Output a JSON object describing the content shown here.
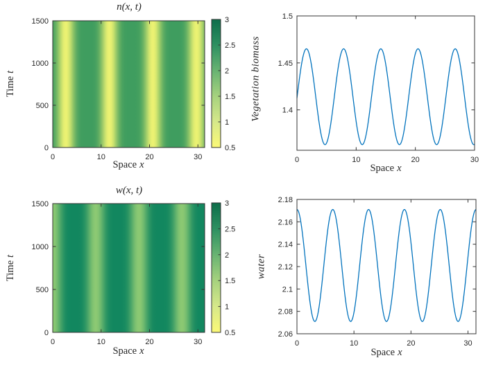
{
  "figure": {
    "background": "#ffffff"
  },
  "style": {
    "line_color": "#0072BD",
    "axis_color": "#333333",
    "text_color": "#262626",
    "colormap_stops_bottom_to_top": [
      "#fbf977",
      "#d6e88a",
      "#a6d27e",
      "#68b372",
      "#2d9061",
      "#0d6e4a"
    ]
  },
  "chart_data": [
    {
      "id": "heatmap-n",
      "type": "heatmap",
      "title": "n(x, t)",
      "xlabel": {
        "text": "Space",
        "var": "x"
      },
      "ylabel": {
        "text": "Time",
        "var": "t"
      },
      "xlim": [
        0,
        31.4
      ],
      "ylim": [
        0,
        1500
      ],
      "xtick_values": [
        0,
        10,
        20,
        30
      ],
      "xtick_labels": [
        "0",
        "10",
        "20",
        "30"
      ],
      "ytick_values": [
        0,
        500,
        1000,
        1500
      ],
      "ytick_labels": [
        "0",
        "500",
        "1000",
        "1500"
      ],
      "colorbar": {
        "min": 0.5,
        "max": 3,
        "tick_values": [
          0.5,
          1,
          1.5,
          2,
          2.5,
          3
        ],
        "tick_labels": [
          "0.5",
          "1",
          "1.5",
          "2",
          "2.5",
          "3"
        ]
      },
      "stripes": {
        "orientation": "vertical-constant-in-time",
        "period_x": 9.0,
        "low_band_centers_x": [
          2.7,
          11.7,
          20.7,
          29.7
        ],
        "low_color": "#ecf272",
        "high_color": "#3f9d5f",
        "low_value_approx": 0.7,
        "high_value_approx": 2.1,
        "band_sharpness": 2.5
      }
    },
    {
      "id": "vegetation-line",
      "type": "line",
      "xlabel": {
        "text": "Space",
        "var": "x"
      },
      "ylabel_math": "Vegetation biomass",
      "xlim": [
        0,
        30
      ],
      "ylim": [
        1.357,
        1.5
      ],
      "xtick_values": [
        0,
        10,
        20,
        30
      ],
      "xtick_labels": [
        "0",
        "10",
        "20",
        "30"
      ],
      "ytick_values": [
        1.4,
        1.45,
        1.5
      ],
      "ytick_labels": [
        "1.4",
        "1.45",
        "1.5"
      ],
      "series": [
        {
          "name": "vegetation biomass profile",
          "model": "y = mean + amplitude*cos(2*pi*(x - first_peak_x)/period)",
          "mean": 1.414,
          "amplitude": 0.051,
          "period": 6.2832,
          "first_peak_x": 1.6,
          "x_start": 0,
          "x_step": 1,
          "y_at_integer_x": [
            1.4125,
            1.4561,
            1.461,
            1.4227,
            1.3764,
            1.3647,
            1.3983,
            1.4464,
            1.4647,
            1.4364,
            1.3875,
            1.363,
            1.3856,
            1.4341,
            1.4643,
            1.4481,
            1.4006,
            1.3654,
            1.375,
            1.4202,
            1.4597,
            1.4581,
            1.4174,
            1.3729,
            1.3662,
            1.4041,
            1.451,
            1.4638,
            1.4324,
            1.384,
            1.3632
          ]
        }
      ]
    },
    {
      "id": "heatmap-w",
      "type": "heatmap",
      "title": "w(x, t)",
      "xlabel": {
        "text": "Space",
        "var": "x"
      },
      "ylabel": {
        "text": "Time",
        "var": "t"
      },
      "xlim": [
        0,
        31.4
      ],
      "ylim": [
        0,
        1500
      ],
      "xtick_values": [
        0,
        10,
        20,
        30
      ],
      "xtick_labels": [
        "0",
        "10",
        "20",
        "30"
      ],
      "ytick_values": [
        0,
        500,
        1000,
        1500
      ],
      "ytick_labels": [
        "0",
        "500",
        "1000",
        "1500"
      ],
      "colorbar": {
        "min": 0.5,
        "max": 3,
        "tick_values": [
          0.5,
          1,
          1.5,
          2,
          2.5,
          3
        ],
        "tick_labels": [
          "0.5",
          "1",
          "1.5",
          "2",
          "2.5",
          "3"
        ]
      },
      "stripes": {
        "orientation": "vertical-constant-in-time",
        "period_x": 8.9,
        "low_band_centers_x": [
          0,
          8.9,
          17.8,
          26.7
        ],
        "low_color": "#8cc973",
        "high_color": "#12875f",
        "low_value_approx": 1.5,
        "high_value_approx": 2.6,
        "band_sharpness": 2.2
      }
    },
    {
      "id": "water-line",
      "type": "line",
      "xlabel": {
        "text": "Space",
        "var": "x"
      },
      "ylabel_math": "water",
      "xlim": [
        0,
        31.4
      ],
      "ylim": [
        2.06,
        2.18
      ],
      "xtick_values": [
        0,
        10,
        20,
        30
      ],
      "xtick_labels": [
        "0",
        "10",
        "20",
        "30"
      ],
      "ytick_values": [
        2.06,
        2.08,
        2.1,
        2.12,
        2.14,
        2.16,
        2.18
      ],
      "ytick_labels": [
        "2.06",
        "2.08",
        "2.1",
        "2.12",
        "2.14",
        "2.16",
        "2.18"
      ],
      "series": [
        {
          "name": "water profile",
          "model": "y = mean + amplitude*cos(2*pi*(x - first_peak_x)/period)",
          "mean": 2.121,
          "amplitude": 0.05,
          "period": 6.2832,
          "first_peak_x": 0,
          "x_start": 0,
          "x_step": 1,
          "y_at_integer_x": [
            2.171,
            2.148,
            2.1002,
            2.0715,
            2.0883,
            2.1352,
            2.169,
            2.1587,
            2.1137,
            2.0754,
            2.079,
            2.1212,
            2.1632,
            2.1664,
            2.1278,
            2.083,
            2.0731,
            2.1072,
            2.154,
            2.1704,
            2.1414,
            2.0936,
            2.071,
            2.0944,
            2.1422,
            2.1706,
            2.1443,
            2.1064,
            2.0729,
            2.0836,
            2.1287,
            2.1667
          ]
        }
      ]
    }
  ]
}
